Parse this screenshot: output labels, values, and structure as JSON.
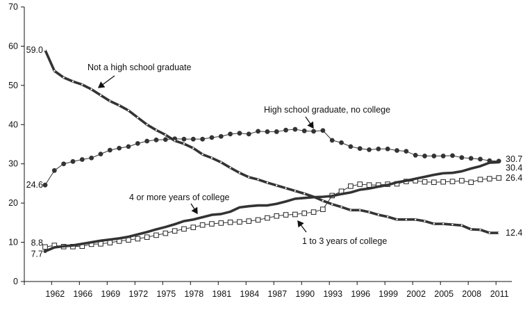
{
  "chart_data": {
    "type": "line",
    "title": "",
    "xlabel": "",
    "ylabel": "",
    "ylim": [
      0,
      70
    ],
    "yticks": [
      0,
      10,
      20,
      30,
      40,
      50,
      60,
      70
    ],
    "grid": false,
    "x_tick_labels": [
      "1962",
      "1966",
      "1969",
      "1972",
      "1975",
      "1978",
      "1981",
      "1984",
      "1987",
      "1990",
      "1993",
      "1996",
      "1999",
      "2002",
      "2005",
      "2008",
      "2011"
    ],
    "x_tick_point_index": [
      1,
      4,
      7,
      10,
      13,
      16,
      19,
      22,
      25,
      28,
      31,
      34,
      37,
      40,
      43,
      46,
      49
    ],
    "series": [
      {
        "name": "Not a high school graduate",
        "style": "thick line with small open markers",
        "color": "#333333",
        "values": [
          59.0,
          53.7,
          52.0,
          51.0,
          50.2,
          49.0,
          47.5,
          46.0,
          44.9,
          43.6,
          41.8,
          40.0,
          38.6,
          37.4,
          35.9,
          35.1,
          34.0,
          32.4,
          31.5,
          30.4,
          29.0,
          27.7,
          26.6,
          26.0,
          25.2,
          24.5,
          23.8,
          23.1,
          22.4,
          21.6,
          20.6,
          19.7,
          19.0,
          18.2,
          18.2,
          17.7,
          17.0,
          16.5,
          15.8,
          15.8,
          15.8,
          15.4,
          14.7,
          14.7,
          14.5,
          14.3,
          13.3,
          13.2,
          12.4,
          12.4
        ],
        "start_label": "59.0",
        "end_label": "12.4"
      },
      {
        "name": "High school graduate, no college",
        "style": "thin line with filled circles",
        "color": "#333333",
        "values": [
          24.6,
          28.3,
          30.0,
          30.6,
          31.1,
          31.5,
          32.5,
          33.5,
          34.0,
          34.4,
          35.2,
          35.8,
          36.1,
          36.2,
          36.4,
          36.3,
          36.3,
          36.3,
          36.7,
          37.0,
          37.6,
          37.8,
          37.6,
          38.3,
          38.2,
          38.2,
          38.6,
          38.8,
          38.4,
          38.3,
          38.5,
          36.0,
          35.4,
          34.4,
          33.9,
          33.6,
          33.8,
          33.8,
          33.4,
          33.2,
          32.2,
          32.0,
          32.0,
          32.0,
          32.1,
          31.6,
          31.4,
          31.2,
          30.8,
          30.7
        ],
        "start_label": "24.6",
        "end_label": "30.7"
      },
      {
        "name": "4 or more years of college",
        "style": "thick line",
        "color": "#333333",
        "values": [
          7.7,
          8.7,
          9.0,
          9.2,
          9.6,
          10.0,
          10.4,
          10.7,
          11.0,
          11.4,
          12.0,
          12.6,
          13.3,
          13.9,
          14.6,
          15.4,
          15.8,
          16.4,
          17.0,
          17.2,
          17.8,
          18.9,
          19.2,
          19.4,
          19.4,
          19.8,
          20.4,
          21.1,
          21.3,
          21.5,
          21.6,
          21.8,
          22.3,
          22.7,
          23.4,
          23.7,
          24.2,
          24.6,
          25.3,
          25.7,
          26.2,
          26.7,
          27.2,
          27.6,
          27.7,
          28.1,
          28.8,
          29.4,
          30.3,
          30.4
        ],
        "start_label": "7.7",
        "end_label": "30.4"
      },
      {
        "name": "1 to 3 years of college",
        "style": "thin line with open squares",
        "color": "#333333",
        "values": [
          8.8,
          9.2,
          8.9,
          8.9,
          9.0,
          9.5,
          9.6,
          9.9,
          10.3,
          10.6,
          10.9,
          11.3,
          11.8,
          12.3,
          12.9,
          13.4,
          13.8,
          14.4,
          14.7,
          14.9,
          15.1,
          15.2,
          15.4,
          15.7,
          16.2,
          16.7,
          17.0,
          17.1,
          17.4,
          17.7,
          18.4,
          21.9,
          23.0,
          24.3,
          24.8,
          24.6,
          24.6,
          24.8,
          24.9,
          25.5,
          25.7,
          25.4,
          25.3,
          25.4,
          25.5,
          25.7,
          25.3,
          26.0,
          26.2,
          26.4
        ],
        "start_label": "8.8",
        "end_label": "26.4"
      }
    ]
  }
}
